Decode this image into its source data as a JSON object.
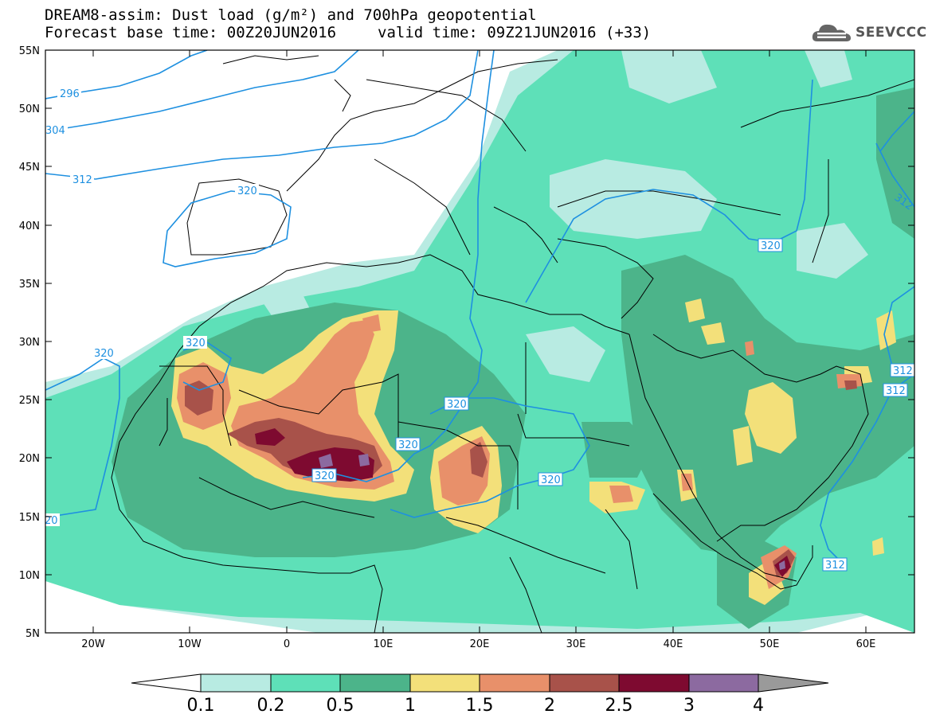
{
  "title_line1": "DREAM8-assim: Dust load (g/m²) and 700hPa geopotential",
  "title_line2_left": "Forecast base time: 00Z20JUN2016",
  "title_line2_right": "valid time: 09Z21JUN2016 (+33)",
  "logo_text": "SEEVCCC",
  "map": {
    "lon_range": [
      -25,
      65
    ],
    "lat_range": [
      5,
      55
    ],
    "lat_labels": [
      "55N",
      "50N",
      "45N",
      "40N",
      "35N",
      "30N",
      "25N",
      "20N",
      "15N",
      "10N",
      "5N"
    ],
    "lon_labels": [
      "20W",
      "10W",
      "0",
      "10E",
      "20E",
      "30E",
      "40E",
      "50E",
      "60E"
    ],
    "contour_labels": [
      "296",
      "304",
      "312",
      "320",
      "320",
      "320",
      "320",
      "320",
      "320",
      "320",
      "312",
      "312",
      "312",
      "320",
      "312",
      "20"
    ]
  },
  "colorbar": {
    "ticks": [
      "0.1",
      "0.2",
      "0.5",
      "1",
      "1.5",
      "2",
      "2.5",
      "3",
      "4"
    ],
    "colors": [
      "#ffffff",
      "#b8ebe2",
      "#5ee0b8",
      "#4cb48a",
      "#f3e07a",
      "#e8906a",
      "#a8524a",
      "#7e0a30",
      "#8c6aa0",
      "#9a9a9a"
    ]
  },
  "colors": {
    "contour": "#1e90e0",
    "dust_01": "#b8ebe2",
    "dust_02": "#5ee0b8",
    "dust_05": "#4cb48a",
    "dust_1": "#f3e07a",
    "dust_15": "#e8906a",
    "dust_2": "#a8524a",
    "dust_25": "#7e0a30",
    "dust_3": "#8c6aa0"
  }
}
